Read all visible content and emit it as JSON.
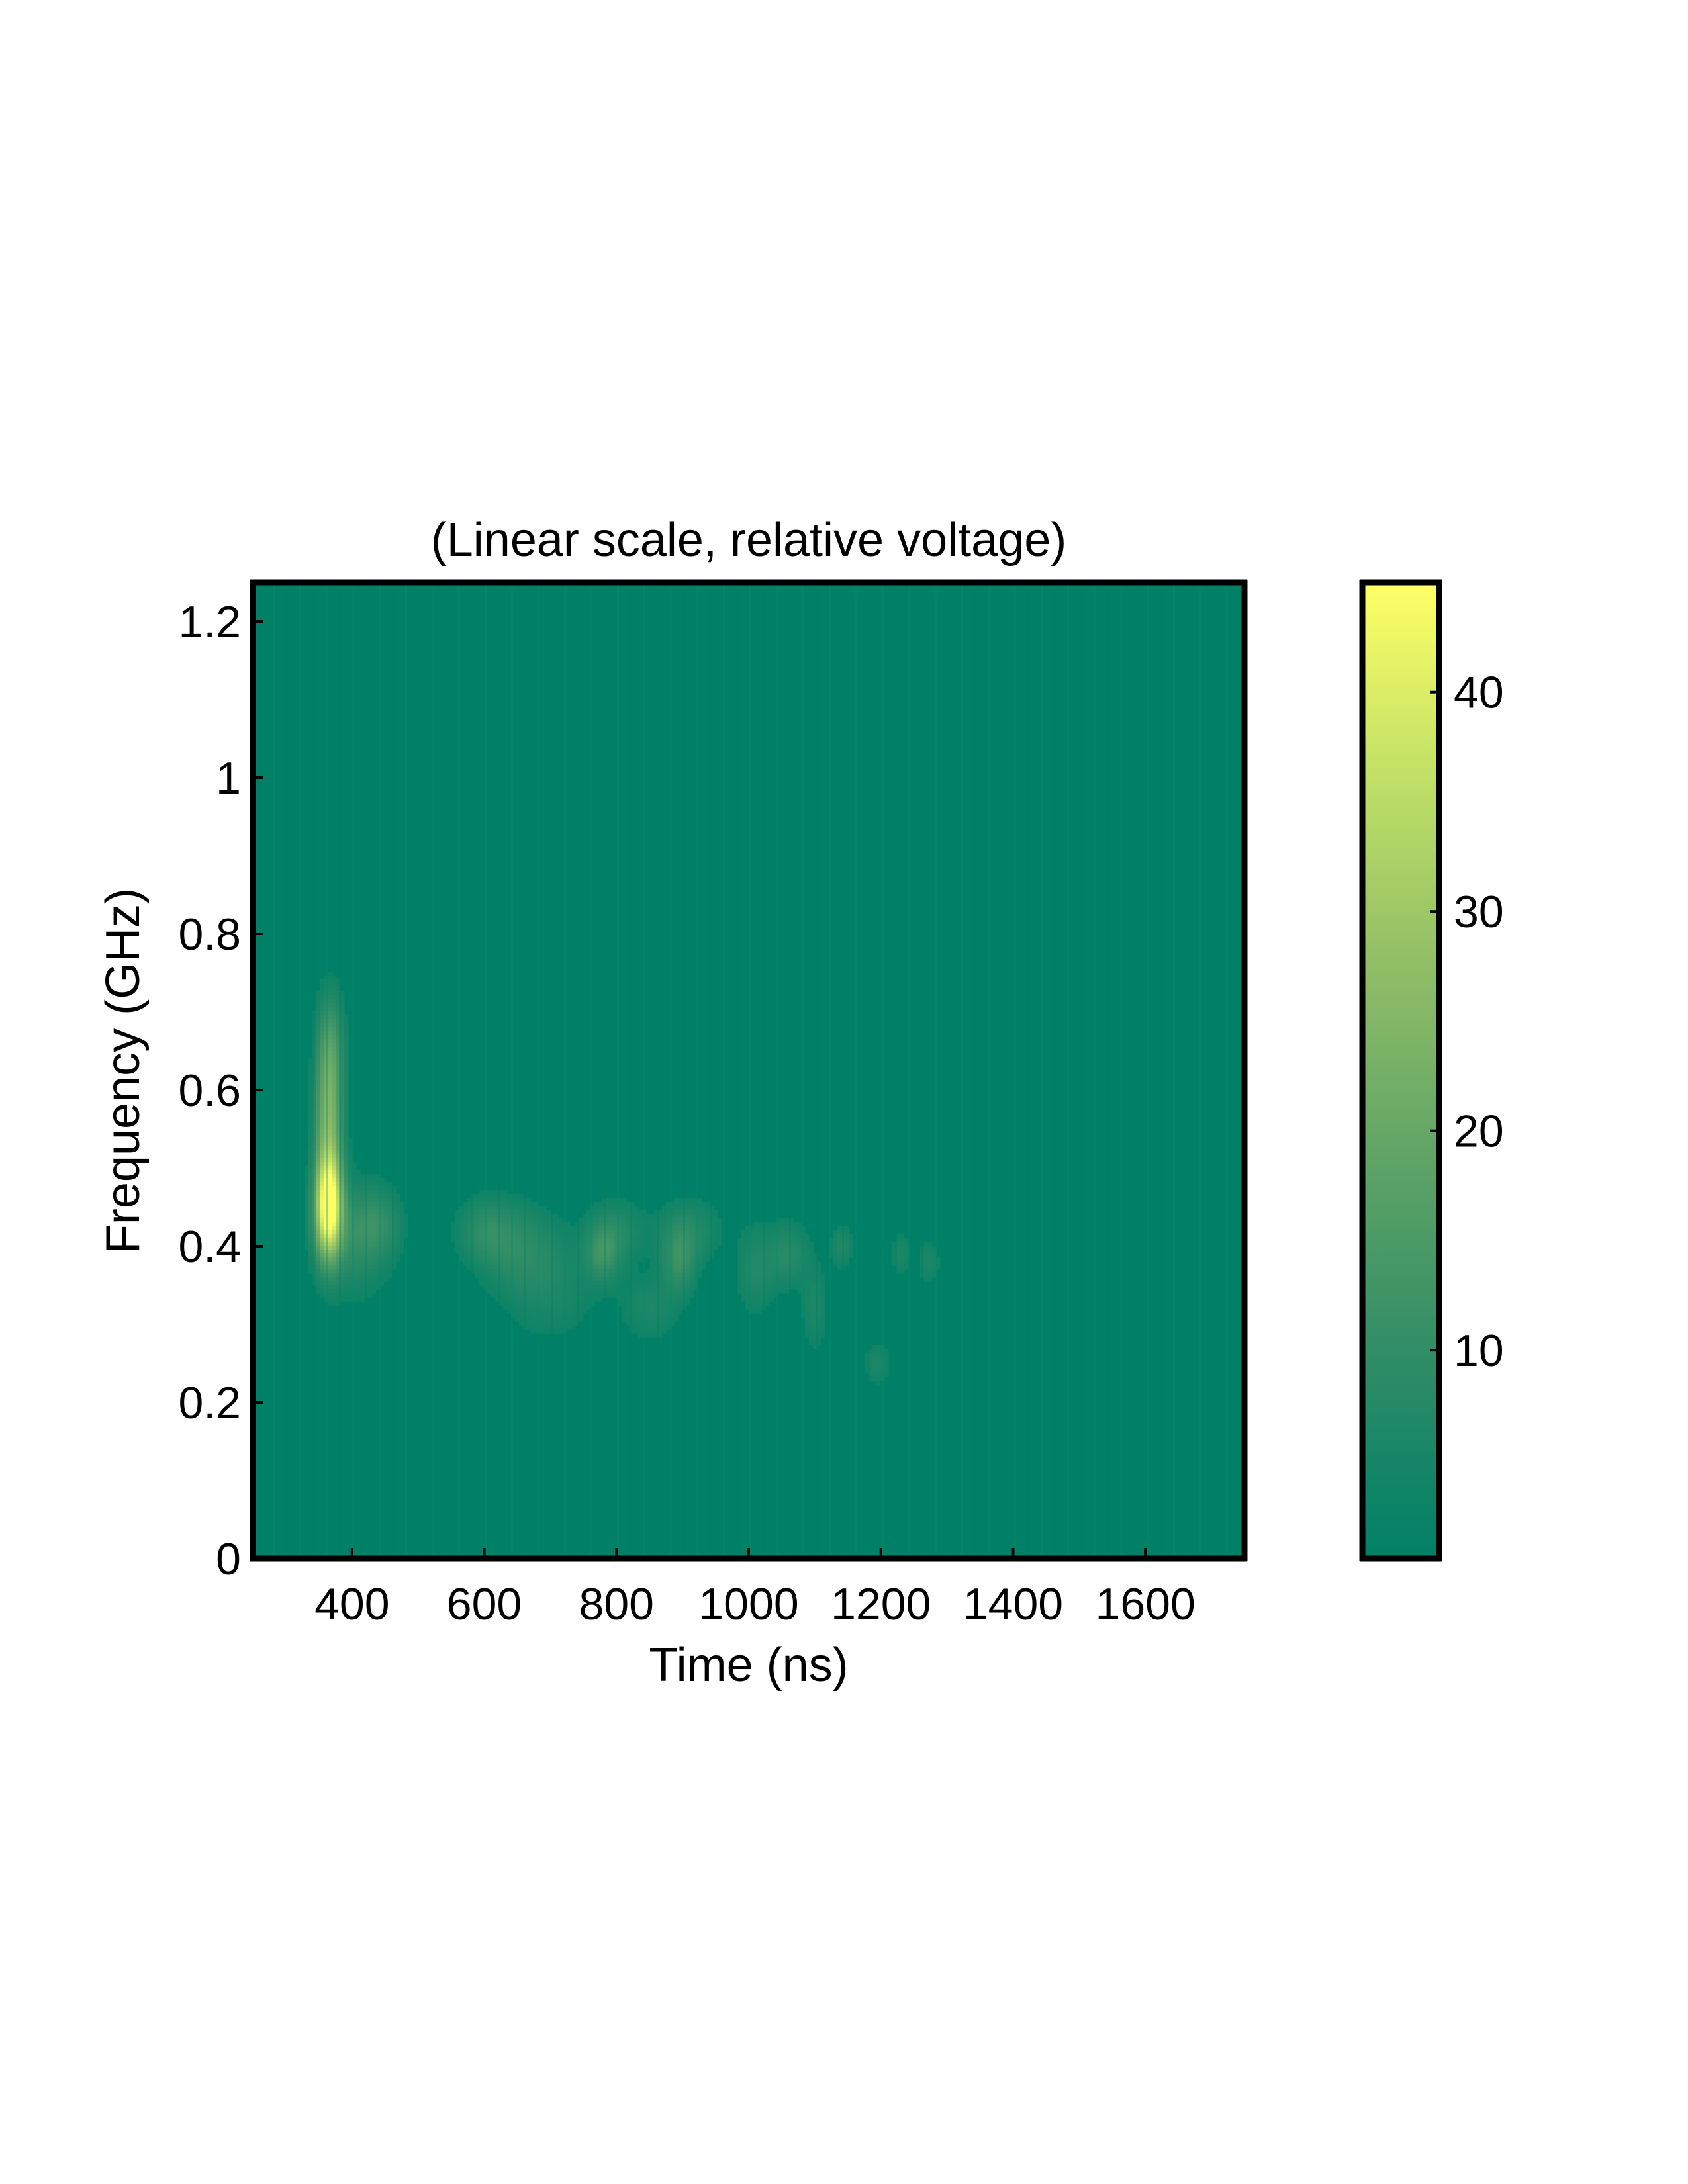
{
  "chart_data": {
    "type": "heatmap",
    "title": "(Linear scale, relative voltage)",
    "xlabel": "Time (ns)",
    "ylabel": "Frequency (GHz)",
    "xlim": [
      250,
      1750
    ],
    "ylim": [
      0,
      1.25
    ],
    "xticks": [
      400,
      600,
      800,
      1000,
      1200,
      1400,
      1600
    ],
    "xtick_labels": [
      "400",
      "600",
      "800",
      "1000",
      "1200",
      "1400",
      "1600"
    ],
    "yticks": [
      0,
      0.2,
      0.4,
      0.6,
      0.8,
      1.0,
      1.2
    ],
    "ytick_labels": [
      "0",
      "0.2",
      "0.4",
      "0.6",
      "0.8",
      "1",
      "1.2"
    ],
    "colorbar": {
      "range": [
        0.5,
        45
      ],
      "ticks": [
        10,
        20,
        30,
        40
      ],
      "tick_labels": [
        "10",
        "20",
        "30",
        "40"
      ],
      "colormap": [
        "#008066",
        "#2e8c66",
        "#5ca366",
        "#8fbd66",
        "#c0e066",
        "#ffff66"
      ]
    },
    "background_value": 1,
    "blobs": [
      {
        "t": 365,
        "f": 0.45,
        "st": 14,
        "sf": 0.045,
        "amp": 44
      },
      {
        "t": 365,
        "f": 0.56,
        "st": 14,
        "sf": 0.07,
        "amp": 22
      },
      {
        "t": 368,
        "f": 0.66,
        "st": 14,
        "sf": 0.05,
        "amp": 9
      },
      {
        "t": 405,
        "f": 0.41,
        "st": 38,
        "sf": 0.05,
        "amp": 8
      },
      {
        "t": 440,
        "f": 0.43,
        "st": 25,
        "sf": 0.03,
        "amp": 6
      },
      {
        "t": 600,
        "f": 0.42,
        "st": 30,
        "sf": 0.03,
        "amp": 7
      },
      {
        "t": 650,
        "f": 0.4,
        "st": 40,
        "sf": 0.04,
        "amp": 6
      },
      {
        "t": 700,
        "f": 0.35,
        "st": 50,
        "sf": 0.05,
        "amp": 5
      },
      {
        "t": 780,
        "f": 0.39,
        "st": 18,
        "sf": 0.025,
        "amp": 9
      },
      {
        "t": 800,
        "f": 0.42,
        "st": 30,
        "sf": 0.03,
        "amp": 6
      },
      {
        "t": 850,
        "f": 0.32,
        "st": 30,
        "sf": 0.03,
        "amp": 5
      },
      {
        "t": 895,
        "f": 0.38,
        "st": 18,
        "sf": 0.03,
        "amp": 9
      },
      {
        "t": 910,
        "f": 0.42,
        "st": 35,
        "sf": 0.03,
        "amp": 6
      },
      {
        "t": 1010,
        "f": 0.37,
        "st": 20,
        "sf": 0.04,
        "amp": 6
      },
      {
        "t": 1060,
        "f": 0.39,
        "st": 22,
        "sf": 0.03,
        "amp": 7
      },
      {
        "t": 1100,
        "f": 0.32,
        "st": 14,
        "sf": 0.04,
        "amp": 5
      },
      {
        "t": 1140,
        "f": 0.4,
        "st": 12,
        "sf": 0.02,
        "amp": 6
      },
      {
        "t": 1195,
        "f": 0.25,
        "st": 15,
        "sf": 0.02,
        "amp": 5
      },
      {
        "t": 1230,
        "f": 0.39,
        "st": 10,
        "sf": 0.02,
        "amp": 5
      },
      {
        "t": 1272,
        "f": 0.38,
        "st": 12,
        "sf": 0.02,
        "amp": 5
      }
    ]
  }
}
